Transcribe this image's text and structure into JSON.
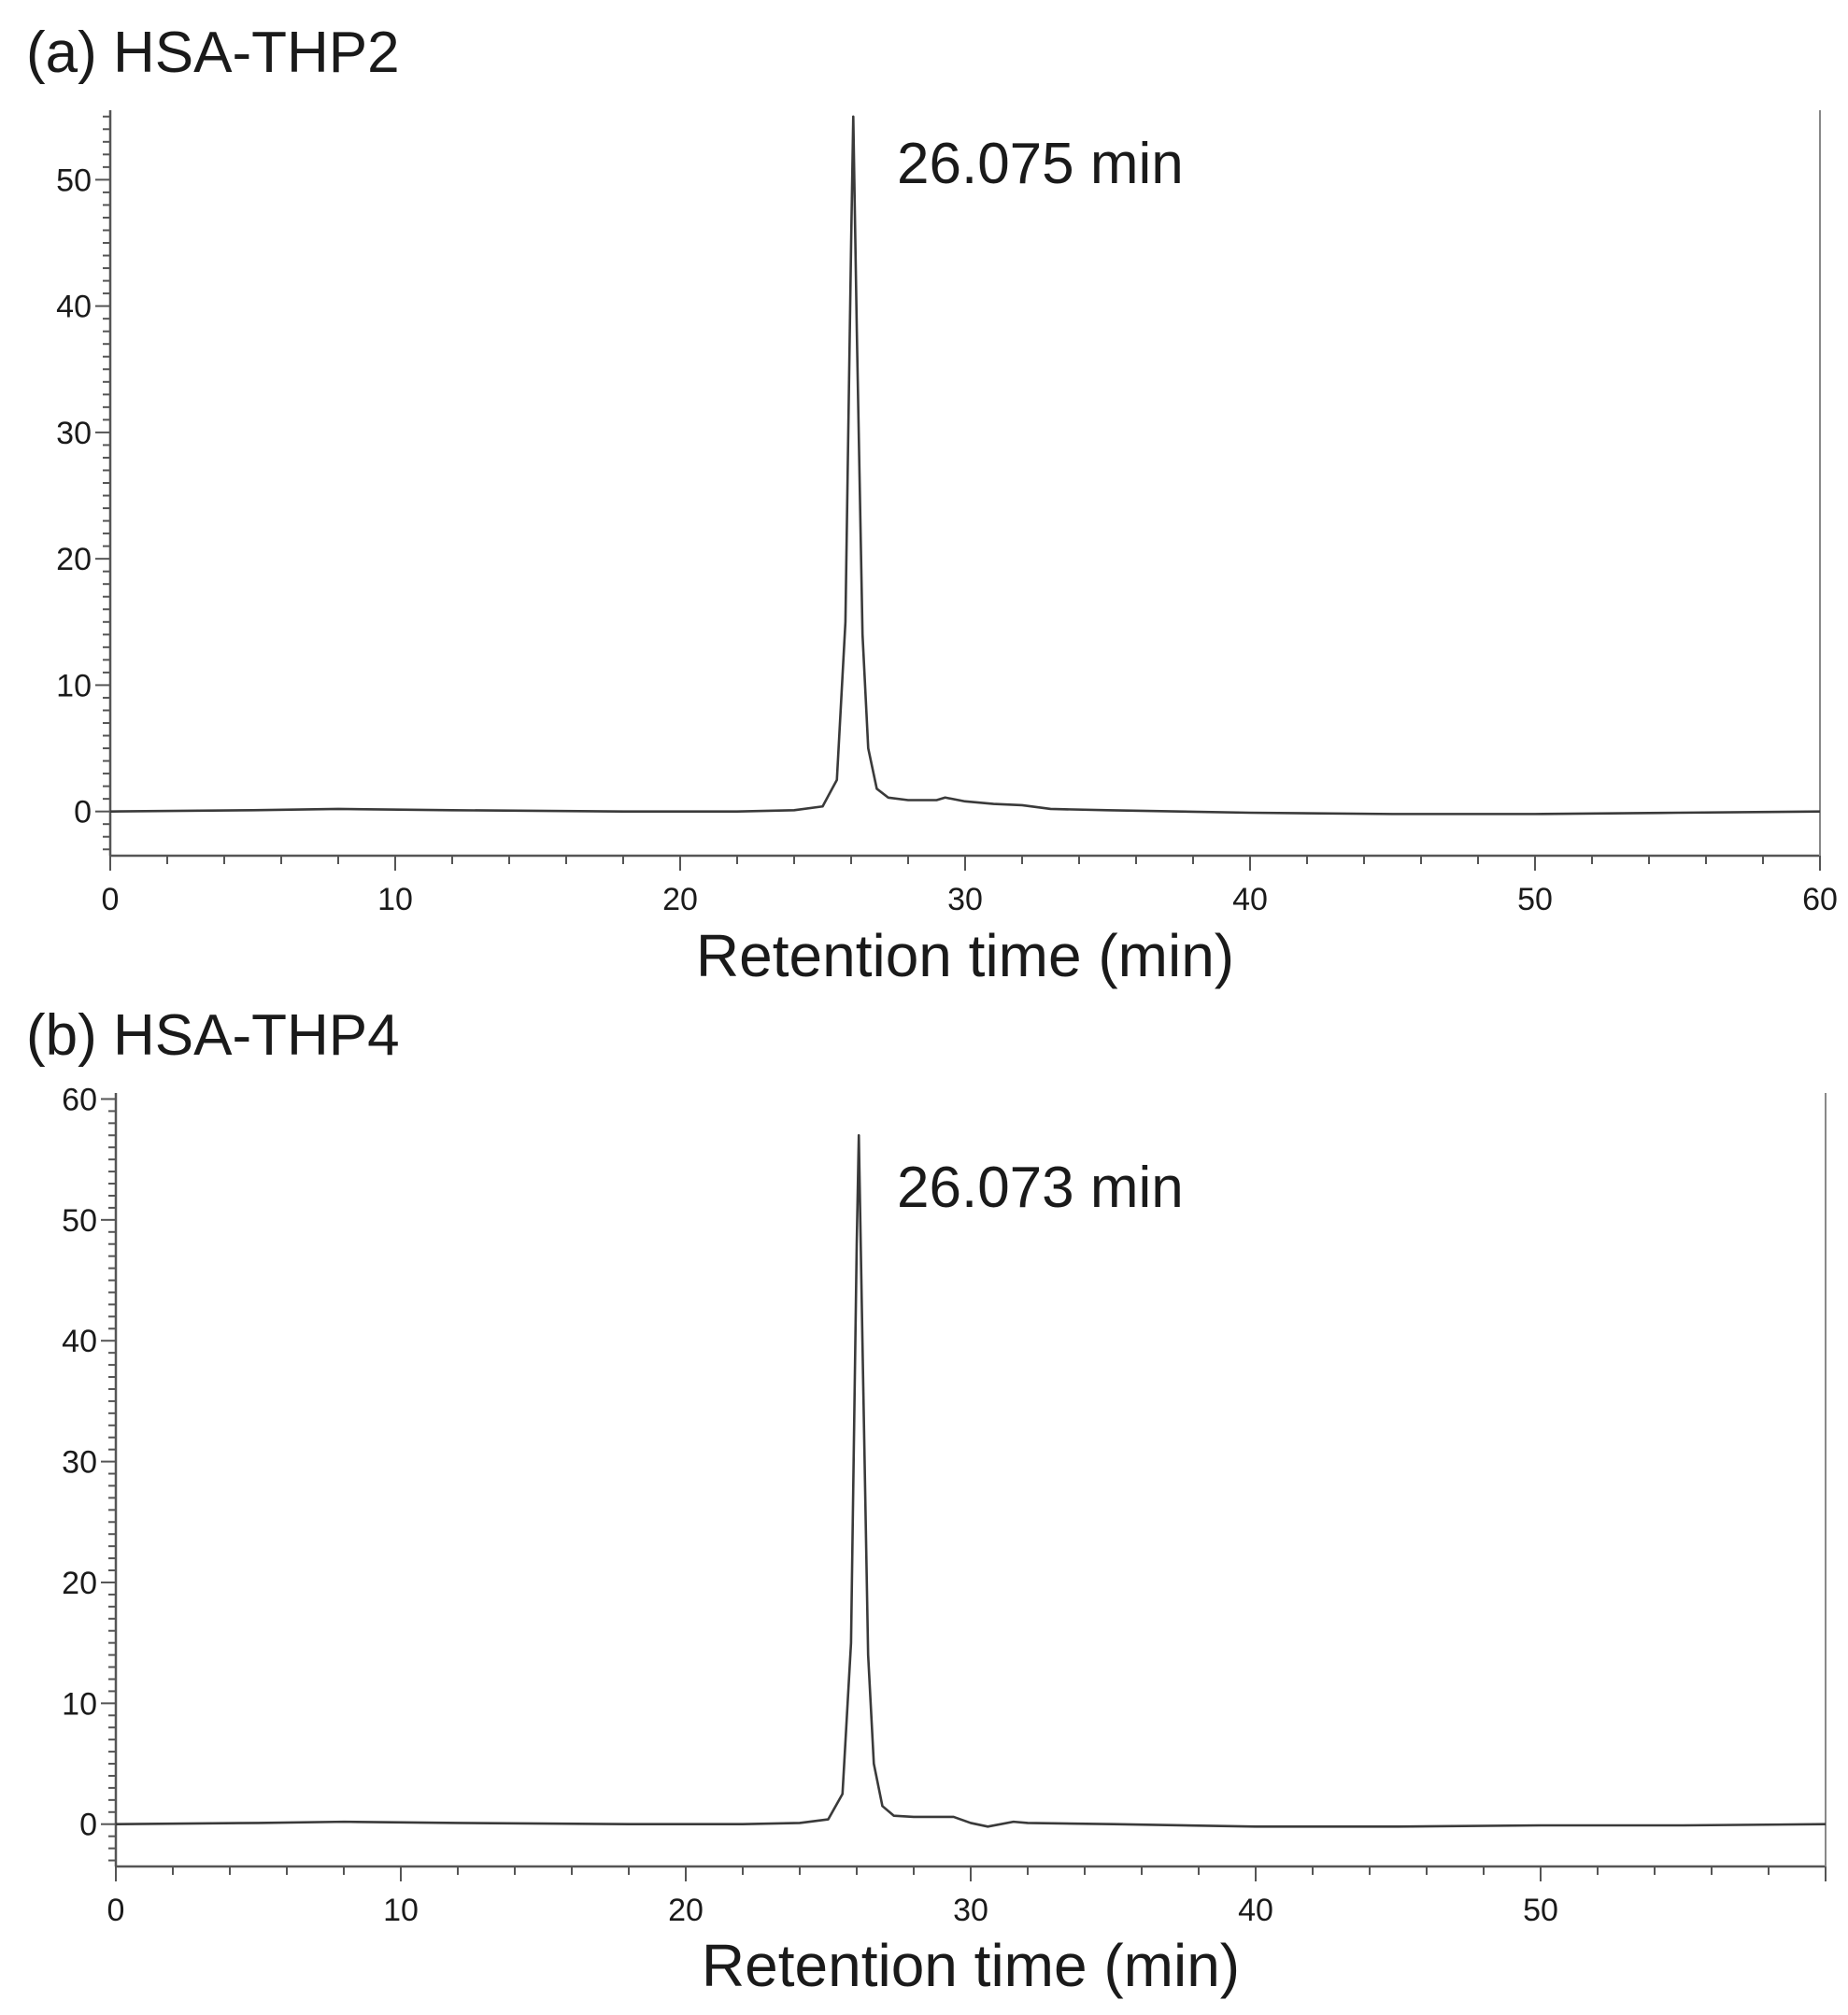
{
  "chart_data": [
    {
      "type": "line",
      "panel_label": "(a) HSA-THP2",
      "title": "(a) HSA-THP2",
      "xlabel": "Retention time (min)",
      "ylabel": "",
      "xlim": [
        0,
        60
      ],
      "ylim": [
        -3.5,
        55.5
      ],
      "x_ticks": [
        0,
        10,
        20,
        30,
        40,
        50,
        60
      ],
      "y_ticks": [
        0,
        10,
        20,
        30,
        40,
        50
      ],
      "grid": false,
      "annotation": "26.075 min",
      "series": [
        {
          "x": [
            0,
            5,
            8,
            12,
            18,
            22,
            24,
            25,
            25.5,
            25.8,
            26.0,
            26.075,
            26.2,
            26.4,
            26.6,
            26.9,
            27.3,
            28.0,
            29.0,
            29.3,
            30.0,
            31.0,
            32.0,
            33.0,
            35.0,
            40.0,
            45.0,
            50.0,
            55.0,
            60.0
          ],
          "y": [
            0,
            0.1,
            0.2,
            0.1,
            0,
            0,
            0.1,
            0.4,
            2.5,
            15,
            45,
            55,
            38,
            14,
            5,
            1.8,
            1.1,
            0.9,
            0.9,
            1.1,
            0.8,
            0.6,
            0.5,
            0.2,
            0.1,
            -0.1,
            -0.2,
            -0.2,
            -0.1,
            0
          ]
        }
      ]
    },
    {
      "type": "line",
      "panel_label": "(b) HSA-THP4",
      "title": "(b) HSA-THP4",
      "xlabel": "Retention time (min)",
      "ylabel": "",
      "xlim": [
        0,
        60
      ],
      "ylim": [
        -3.5,
        60.5
      ],
      "x_ticks": [
        0,
        10,
        20,
        30,
        40,
        50
      ],
      "y_ticks": [
        0,
        10,
        20,
        30,
        40,
        50,
        60
      ],
      "grid": false,
      "annotation": "26.073 min",
      "series": [
        {
          "x": [
            0,
            5,
            8,
            12,
            18,
            22,
            24,
            25,
            25.5,
            25.8,
            26.0,
            26.073,
            26.2,
            26.4,
            26.6,
            26.9,
            27.3,
            28.0,
            29.0,
            29.4,
            30.0,
            30.6,
            31.5,
            32.0,
            35.0,
            40.0,
            45.0,
            50.0,
            55.0,
            60.0
          ],
          "y": [
            0,
            0.1,
            0.2,
            0.1,
            0,
            0,
            0.1,
            0.4,
            2.5,
            15,
            48,
            57,
            40,
            14,
            5,
            1.5,
            0.7,
            0.6,
            0.6,
            0.6,
            0.1,
            -0.2,
            0.2,
            0.1,
            0,
            -0.2,
            -0.2,
            -0.1,
            -0.1,
            0
          ]
        }
      ]
    }
  ]
}
